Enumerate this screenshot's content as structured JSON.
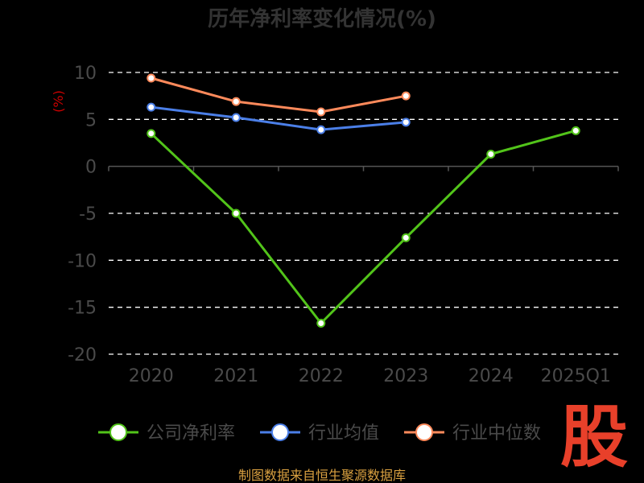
{
  "chart_data": {
    "type": "line",
    "title": "历年净利率变化情况(%)",
    "ylabel": "(%)",
    "xlabel": "",
    "categories": [
      "2020",
      "2021",
      "2022",
      "2023",
      "2024",
      "2025Q1"
    ],
    "y_ticks": [
      10,
      5,
      0,
      -5,
      -10,
      -15,
      -20
    ],
    "ylim": [
      -20,
      10
    ],
    "grid": "horizontal-dashed",
    "legend_position": "bottom",
    "series": [
      {
        "name": "公司净利率",
        "color": "#52c41a",
        "values": [
          3.5,
          -5.0,
          -16.7,
          -7.6,
          1.3,
          3.8
        ]
      },
      {
        "name": "行业均值",
        "color": "#4b7fe8",
        "values": [
          6.3,
          5.2,
          3.9,
          4.7,
          null,
          null
        ]
      },
      {
        "name": "行业中位数",
        "color": "#ff8a5b",
        "values": [
          9.4,
          6.9,
          5.8,
          7.5,
          null,
          null
        ]
      }
    ]
  },
  "source": "制图数据来自恒生聚源数据库",
  "brand": "股"
}
